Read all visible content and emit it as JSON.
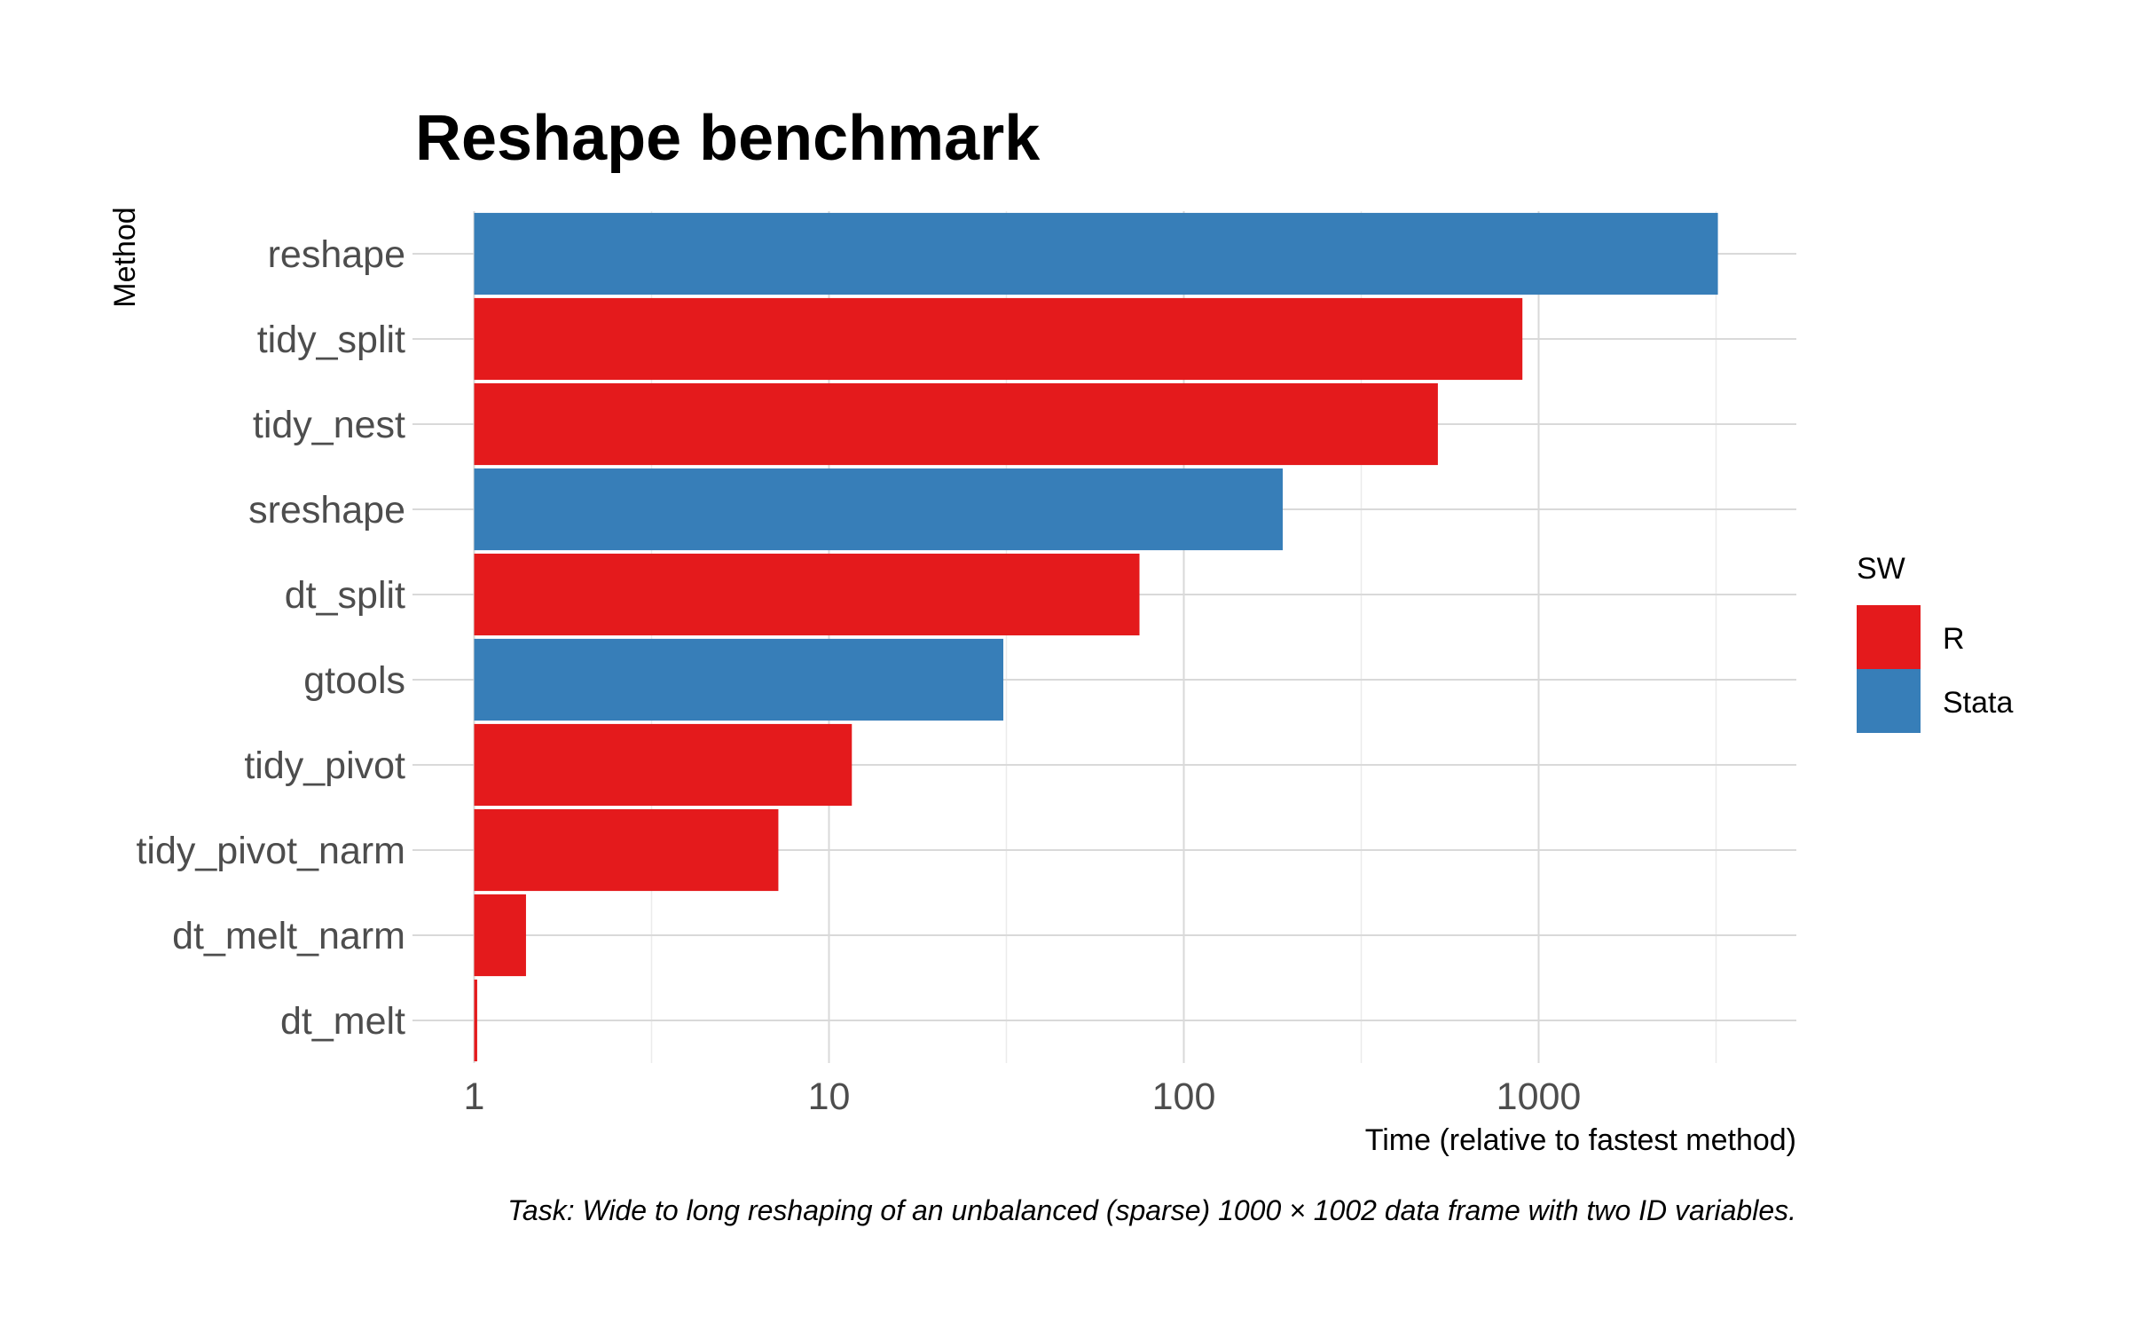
{
  "chart_data": {
    "type": "bar",
    "orientation": "horizontal",
    "title": "Reshape benchmark",
    "xlabel": "Time (relative to fastest method)",
    "ylabel": "Method",
    "x_scale": "log10",
    "xlim": [
      1,
      3500
    ],
    "x_ticks": [
      1,
      10,
      100,
      1000
    ],
    "x_tick_labels": [
      "1",
      "10",
      "100",
      "1000"
    ],
    "categories": [
      "reshape",
      "tidy_split",
      "tidy_nest",
      "sreshape",
      "dt_split",
      "gtools",
      "tidy_pivot",
      "tidy_pivot_narm",
      "dt_melt_narm",
      "dt_melt"
    ],
    "values": [
      3200,
      900,
      520,
      190,
      75,
      31,
      11.6,
      7.2,
      1.4,
      1.02
    ],
    "groups": [
      "Stata",
      "R",
      "R",
      "Stata",
      "R",
      "Stata",
      "R",
      "R",
      "R",
      "R"
    ],
    "legend": {
      "title": "SW",
      "position": "right",
      "entries": [
        {
          "label": "R",
          "color": "#e41a1c"
        },
        {
          "label": "Stata",
          "color": "#377eb8"
        }
      ]
    },
    "caption": "Task: Wide to long reshaping of an unbalanced (sparse) 1000 × 1002 data frame with two ID variables.",
    "grid": true
  }
}
